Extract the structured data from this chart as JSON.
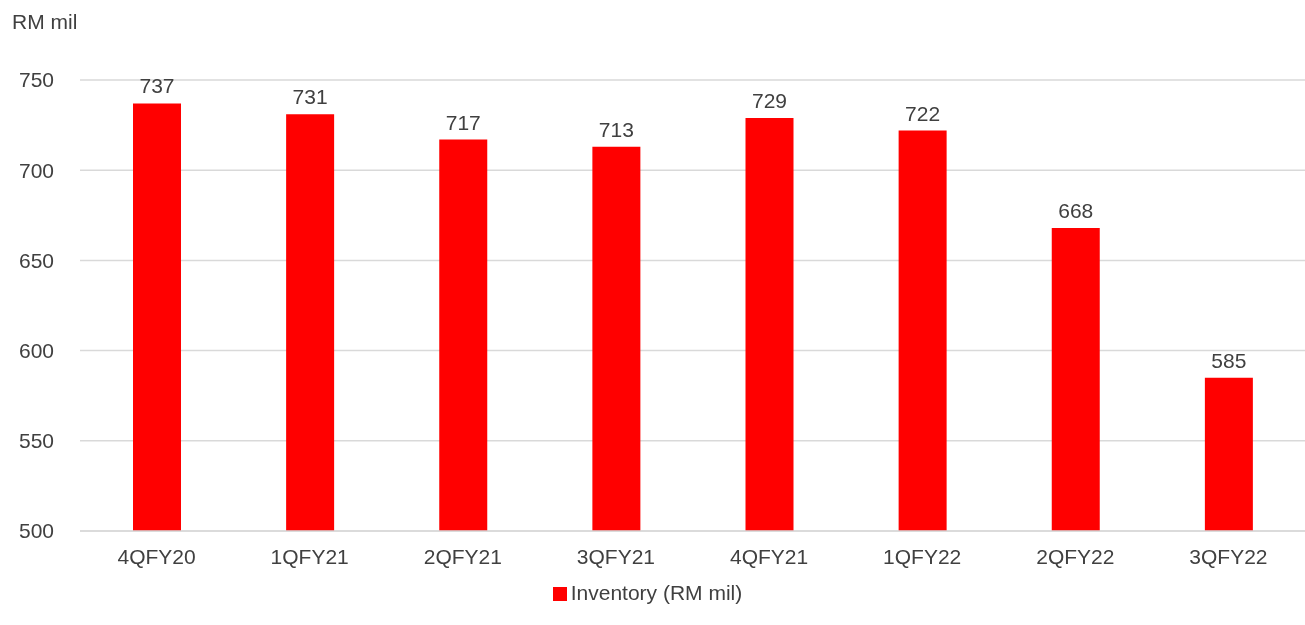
{
  "chart_data": {
    "type": "bar",
    "ylabel": "RM mil",
    "categories": [
      "4QFY20",
      "1QFY21",
      "2QFY21",
      "3QFY21",
      "4QFY21",
      "1QFY22",
      "2QFY22",
      "3QFY22"
    ],
    "series": [
      {
        "name": "Inventory (RM mil)",
        "color": "#ff0000",
        "values": [
          737,
          731,
          717,
          713,
          729,
          722,
          668,
          585
        ]
      }
    ],
    "ylim": [
      500,
      750
    ],
    "yticks": [
      500,
      550,
      600,
      650,
      700,
      750
    ],
    "grid": "y",
    "legend": "bottom",
    "data_labels": true
  }
}
